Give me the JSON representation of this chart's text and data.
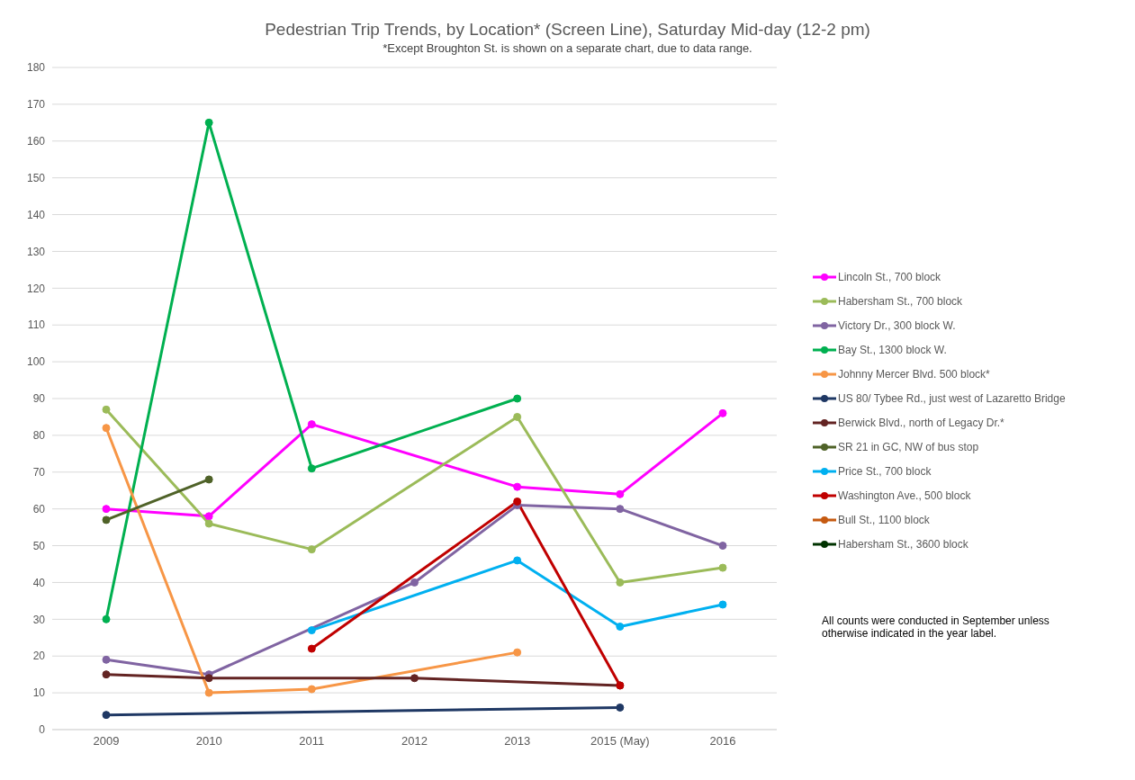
{
  "chart_data": {
    "type": "line",
    "title": "Pedestrian Trip Trends, by Location* (Screen Line), Saturday Mid-day (12-2 pm)",
    "subtitle": "*Except Broughton St. is shown on a separate chart, due to data range.",
    "categories": [
      "2009",
      "2010",
      "2011",
      "2012",
      "2013",
      "2015 (May)",
      "2016"
    ],
    "series": [
      {
        "name": "Lincoln St., 700 block",
        "color": "#ff00ff",
        "values": [
          60,
          58,
          83,
          null,
          66,
          64,
          86
        ]
      },
      {
        "name": "Habersham St., 700 block",
        "color": "#9bbb59",
        "values": [
          87,
          56,
          49,
          null,
          85,
          40,
          44
        ]
      },
      {
        "name": "Victory Dr., 300 block W.",
        "color": "#8064a2",
        "values": [
          19,
          15,
          null,
          40,
          61,
          60,
          50
        ]
      },
      {
        "name": "Bay St., 1300 block W.",
        "color": "#00b050",
        "values": [
          30,
          165,
          71,
          null,
          90,
          null,
          null
        ]
      },
      {
        "name": "Johnny Mercer Blvd. 500 block*",
        "color": "#f79646",
        "values": [
          82,
          10,
          11,
          null,
          21,
          null,
          null
        ]
      },
      {
        "name": "US 80/ Tybee Rd., just west of Lazaretto Bridge",
        "color": "#1f3864",
        "values": [
          4,
          null,
          null,
          null,
          null,
          6,
          null
        ]
      },
      {
        "name": "Berwick Blvd., north of Legacy Dr.*",
        "color": "#632423",
        "values": [
          15,
          14,
          null,
          14,
          null,
          12,
          null
        ]
      },
      {
        "name": "SR 21 in GC, NW of bus stop",
        "color": "#4f6228",
        "values": [
          57,
          68,
          null,
          null,
          null,
          null,
          null
        ]
      },
      {
        "name": "Price St., 700 block",
        "color": "#00b0f0",
        "values": [
          null,
          null,
          27,
          null,
          46,
          28,
          34
        ]
      },
      {
        "name": "Washington Ave., 500 block",
        "color": "#c00000",
        "values": [
          null,
          null,
          22,
          null,
          62,
          12,
          null
        ]
      },
      {
        "name": "Bull St., 1100 block",
        "color": "#c55a11",
        "values": [
          null,
          null,
          null,
          null,
          null,
          null,
          null
        ]
      },
      {
        "name": "Habersham St., 3600 block",
        "color": "#003300",
        "values": [
          null,
          null,
          null,
          null,
          null,
          null,
          null
        ]
      }
    ],
    "ylim": [
      0,
      180
    ],
    "yticks": [
      0,
      10,
      20,
      30,
      40,
      50,
      60,
      70,
      80,
      90,
      100,
      110,
      120,
      130,
      140,
      150,
      160,
      170,
      180
    ],
    "grid": "y",
    "legend": "right",
    "marker": "circle",
    "line_style": "solid",
    "annotations": [
      "All counts were conducted in September unless otherwise indicated in the year label."
    ]
  }
}
